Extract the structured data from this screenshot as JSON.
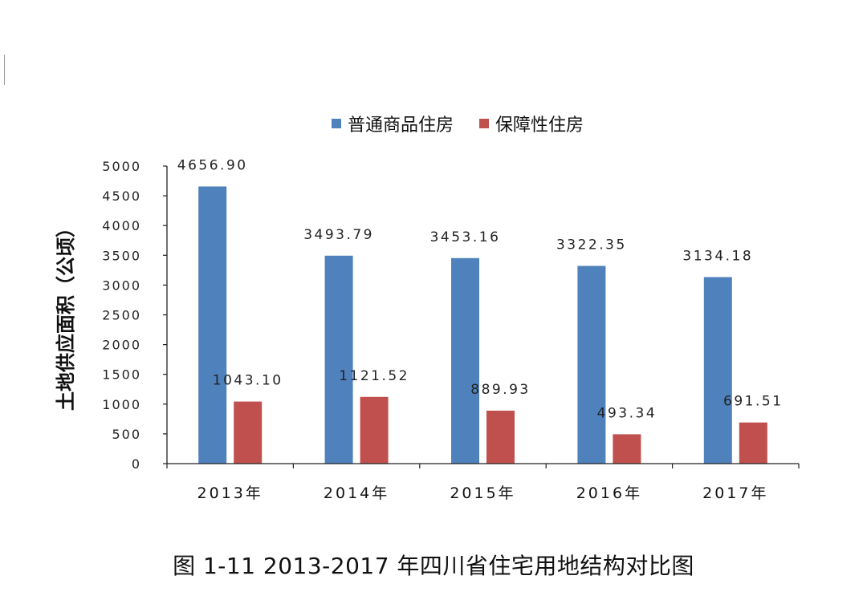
{
  "caption": "图 1-11 2013-2017 年四川省住宅用地结构对比图",
  "chart_data": {
    "type": "bar",
    "title": "",
    "ylabel": "土地供应面积（公顷）",
    "xlabel": "",
    "categories": [
      "2013年",
      "2014年",
      "2015年",
      "2016年",
      "2017年"
    ],
    "series": [
      {
        "name": "普通商品住房",
        "color": "#4f81bd",
        "values": [
          4656.9,
          3493.79,
          3453.16,
          3322.35,
          3134.18
        ],
        "labels": [
          "4656.90",
          "3493.79",
          "3453.16",
          "3322.35",
          "3134.18"
        ]
      },
      {
        "name": "保障性住房",
        "color": "#c0504d",
        "values": [
          1043.1,
          1121.52,
          889.93,
          493.34,
          691.51
        ],
        "labels": [
          "1043.10",
          "1121.52",
          "889.93",
          "493.34",
          "691.51"
        ]
      }
    ],
    "ylim": [
      0,
      5000
    ],
    "yticks": [
      "0",
      "500",
      "1000",
      "1500",
      "2000",
      "2500",
      "3000",
      "3500",
      "4000",
      "4500",
      "5000"
    ],
    "legend_position": "top",
    "grid": false
  }
}
